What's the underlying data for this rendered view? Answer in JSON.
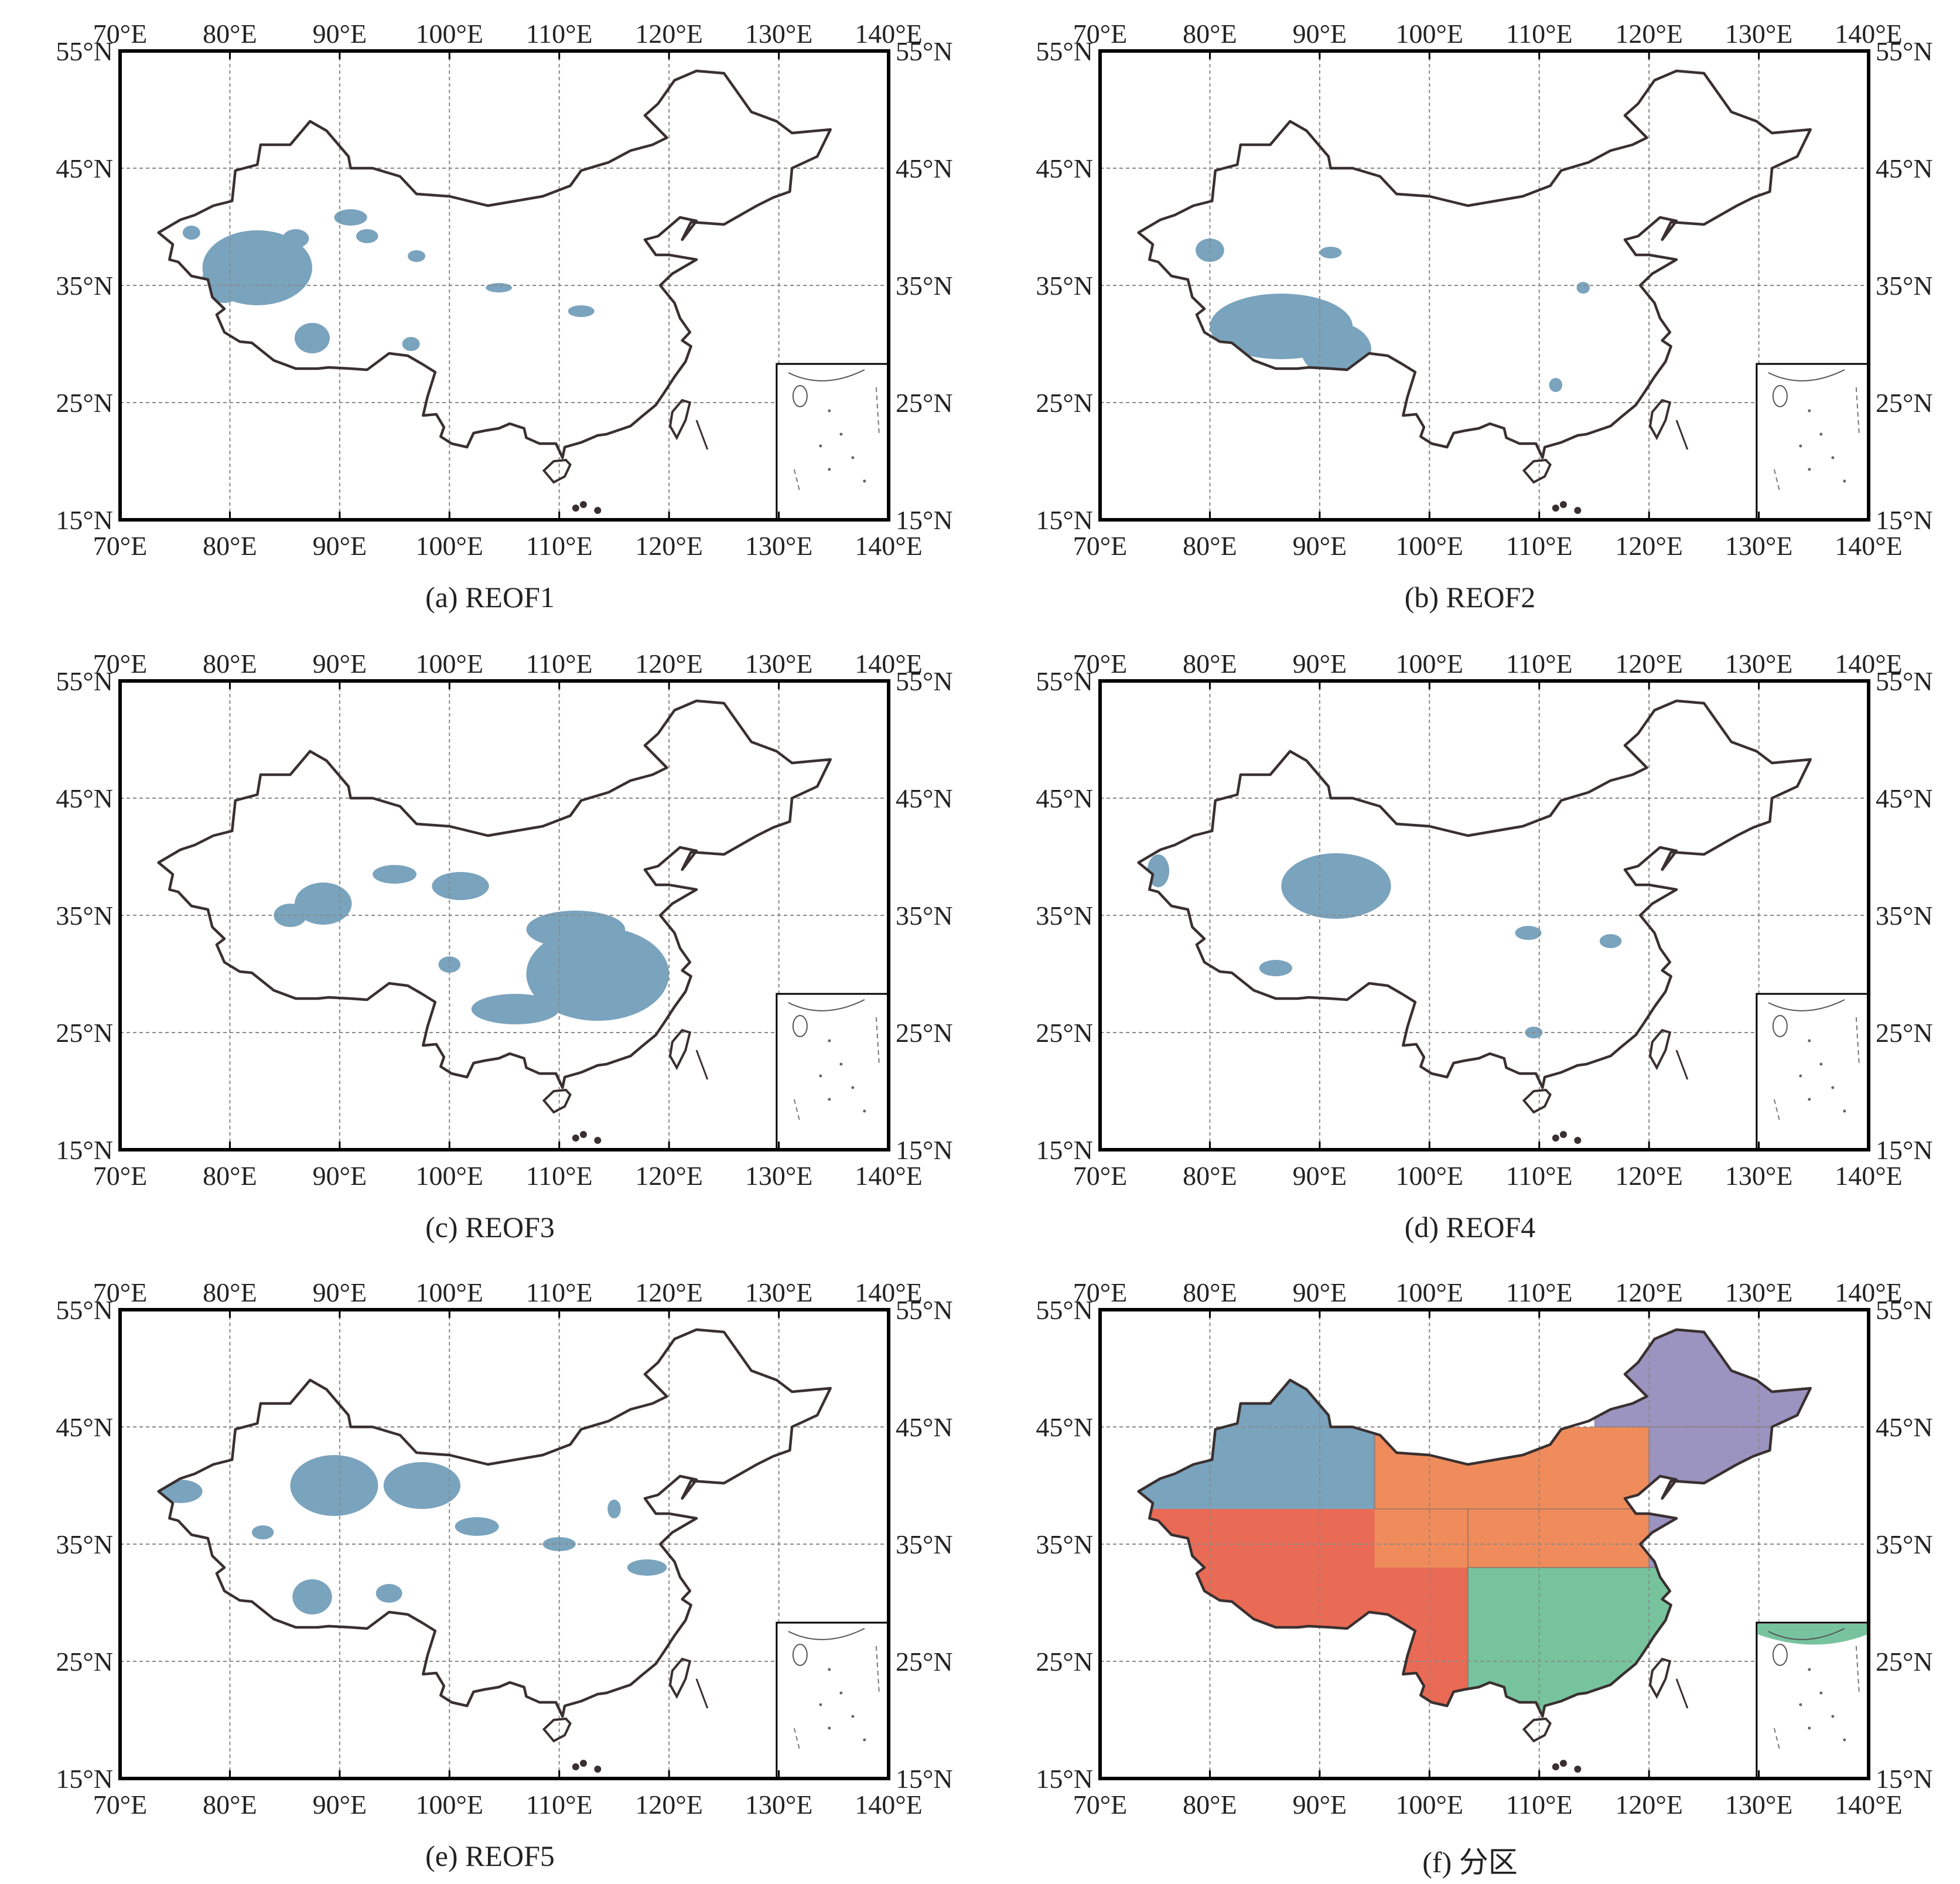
{
  "lon_labels": [
    "70°E",
    "80°E",
    "90°E",
    "100°E",
    "110°E",
    "120°E",
    "130°E",
    "140°E"
  ],
  "lat_labels": [
    "55°N",
    "45°N",
    "35°N",
    "25°N",
    "15°N"
  ],
  "lon_range": [
    70,
    140
  ],
  "lat_range": [
    15,
    55
  ],
  "colors": {
    "region_blue": "#7aa3bd",
    "region_orange": "#f08c5c",
    "region_red": "#e96a55",
    "region_green": "#77c39e",
    "region_purple": "#9b93c0",
    "border": "#3a3030",
    "grid": "#8a8a8a"
  },
  "panels": [
    {
      "caption": "(a) REOF1",
      "type": "reof"
    },
    {
      "caption": "(b) REOF2",
      "type": "reof"
    },
    {
      "caption": "(c) REOF3",
      "type": "reof"
    },
    {
      "caption": "(d) REOF4",
      "type": "reof"
    },
    {
      "caption": "(e) REOF5",
      "type": "reof"
    },
    {
      "caption": "(f) 分区",
      "type": "regions"
    }
  ]
}
